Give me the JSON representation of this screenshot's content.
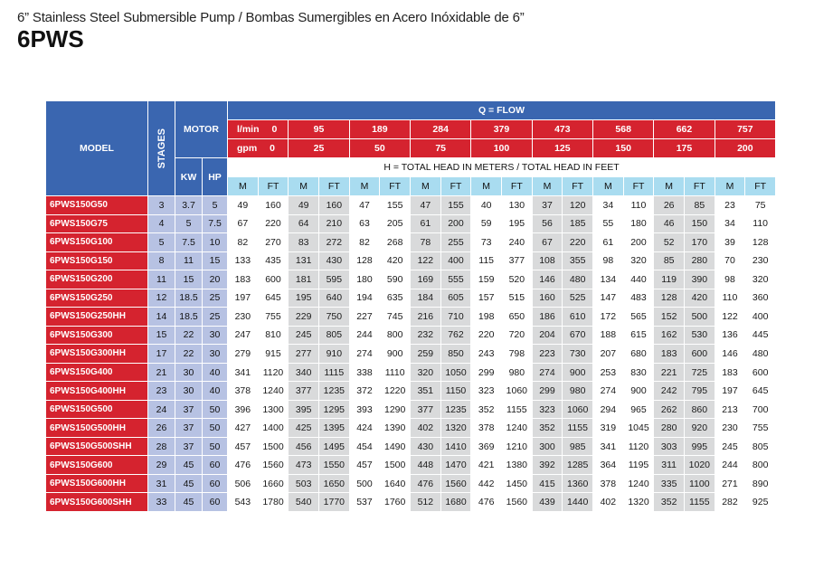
{
  "header": {
    "subtitle": "6” Stainless Steel Submersible Pump / Bombas Sumergibles en Acero Inóxidable de 6”",
    "title": "6PWS"
  },
  "table": {
    "model_label": "MODEL",
    "stages_label": "STAGES",
    "motor_label": "MOTOR",
    "kw_label": "KW",
    "hp_label": "HP",
    "flow_label": "Q = FLOW",
    "lmin_label": "l/min",
    "gpm_label": "gpm",
    "lmin_values": [
      "0",
      "95",
      "189",
      "284",
      "379",
      "473",
      "568",
      "662",
      "757"
    ],
    "gpm_values": [
      "0",
      "25",
      "50",
      "75",
      "100",
      "125",
      "150",
      "175",
      "200"
    ],
    "head_label": "H = TOTAL HEAD IN METERS / TOTAL HEAD IN FEET",
    "m_label": "M",
    "ft_label": "FT",
    "rows": [
      {
        "model": "6PWS150G50",
        "stages": "3",
        "kw": "3.7",
        "hp": "5",
        "vals": [
          "49",
          "160",
          "49",
          "160",
          "47",
          "155",
          "47",
          "155",
          "40",
          "130",
          "37",
          "120",
          "34",
          "110",
          "26",
          "85",
          "23",
          "75"
        ]
      },
      {
        "model": "6PWS150G75",
        "stages": "4",
        "kw": "5",
        "hp": "7.5",
        "vals": [
          "67",
          "220",
          "64",
          "210",
          "63",
          "205",
          "61",
          "200",
          "59",
          "195",
          "56",
          "185",
          "55",
          "180",
          "46",
          "150",
          "34",
          "110"
        ]
      },
      {
        "model": "6PWS150G100",
        "stages": "5",
        "kw": "7.5",
        "hp": "10",
        "vals": [
          "82",
          "270",
          "83",
          "272",
          "82",
          "268",
          "78",
          "255",
          "73",
          "240",
          "67",
          "220",
          "61",
          "200",
          "52",
          "170",
          "39",
          "128"
        ]
      },
      {
        "model": "6PWS150G150",
        "stages": "8",
        "kw": "11",
        "hp": "15",
        "vals": [
          "133",
          "435",
          "131",
          "430",
          "128",
          "420",
          "122",
          "400",
          "115",
          "377",
          "108",
          "355",
          "98",
          "320",
          "85",
          "280",
          "70",
          "230"
        ]
      },
      {
        "model": "6PWS150G200",
        "stages": "11",
        "kw": "15",
        "hp": "20",
        "vals": [
          "183",
          "600",
          "181",
          "595",
          "180",
          "590",
          "169",
          "555",
          "159",
          "520",
          "146",
          "480",
          "134",
          "440",
          "119",
          "390",
          "98",
          "320"
        ]
      },
      {
        "model": "6PWS150G250",
        "stages": "12",
        "kw": "18.5",
        "hp": "25",
        "vals": [
          "197",
          "645",
          "195",
          "640",
          "194",
          "635",
          "184",
          "605",
          "157",
          "515",
          "160",
          "525",
          "147",
          "483",
          "128",
          "420",
          "110",
          "360"
        ]
      },
      {
        "model": "6PWS150G250HH",
        "stages": "14",
        "kw": "18.5",
        "hp": "25",
        "vals": [
          "230",
          "755",
          "229",
          "750",
          "227",
          "745",
          "216",
          "710",
          "198",
          "650",
          "186",
          "610",
          "172",
          "565",
          "152",
          "500",
          "122",
          "400"
        ]
      },
      {
        "model": "6PWS150G300",
        "stages": "15",
        "kw": "22",
        "hp": "30",
        "vals": [
          "247",
          "810",
          "245",
          "805",
          "244",
          "800",
          "232",
          "762",
          "220",
          "720",
          "204",
          "670",
          "188",
          "615",
          "162",
          "530",
          "136",
          "445"
        ]
      },
      {
        "model": "6PWS150G300HH",
        "stages": "17",
        "kw": "22",
        "hp": "30",
        "vals": [
          "279",
          "915",
          "277",
          "910",
          "274",
          "900",
          "259",
          "850",
          "243",
          "798",
          "223",
          "730",
          "207",
          "680",
          "183",
          "600",
          "146",
          "480"
        ]
      },
      {
        "model": "6PWS150G400",
        "stages": "21",
        "kw": "30",
        "hp": "40",
        "vals": [
          "341",
          "1120",
          "340",
          "1115",
          "338",
          "1110",
          "320",
          "1050",
          "299",
          "980",
          "274",
          "900",
          "253",
          "830",
          "221",
          "725",
          "183",
          "600"
        ]
      },
      {
        "model": "6PWS150G400HH",
        "stages": "23",
        "kw": "30",
        "hp": "40",
        "vals": [
          "378",
          "1240",
          "377",
          "1235",
          "372",
          "1220",
          "351",
          "1150",
          "323",
          "1060",
          "299",
          "980",
          "274",
          "900",
          "242",
          "795",
          "197",
          "645"
        ]
      },
      {
        "model": "6PWS150G500",
        "stages": "24",
        "kw": "37",
        "hp": "50",
        "vals": [
          "396",
          "1300",
          "395",
          "1295",
          "393",
          "1290",
          "377",
          "1235",
          "352",
          "1155",
          "323",
          "1060",
          "294",
          "965",
          "262",
          "860",
          "213",
          "700"
        ]
      },
      {
        "model": "6PWS150G500HH",
        "stages": "26",
        "kw": "37",
        "hp": "50",
        "vals": [
          "427",
          "1400",
          "425",
          "1395",
          "424",
          "1390",
          "402",
          "1320",
          "378",
          "1240",
          "352",
          "1155",
          "319",
          "1045",
          "280",
          "920",
          "230",
          "755"
        ]
      },
      {
        "model": "6PWS150G500SHH",
        "stages": "28",
        "kw": "37",
        "hp": "50",
        "vals": [
          "457",
          "1500",
          "456",
          "1495",
          "454",
          "1490",
          "430",
          "1410",
          "369",
          "1210",
          "300",
          "985",
          "341",
          "1120",
          "303",
          "995",
          "245",
          "805"
        ]
      },
      {
        "model": "6PWS150G600",
        "stages": "29",
        "kw": "45",
        "hp": "60",
        "vals": [
          "476",
          "1560",
          "473",
          "1550",
          "457",
          "1500",
          "448",
          "1470",
          "421",
          "1380",
          "392",
          "1285",
          "364",
          "1195",
          "311",
          "1020",
          "244",
          "800"
        ]
      },
      {
        "model": "6PWS150G600HH",
        "stages": "31",
        "kw": "45",
        "hp": "60",
        "vals": [
          "506",
          "1660",
          "503",
          "1650",
          "500",
          "1640",
          "476",
          "1560",
          "442",
          "1450",
          "415",
          "1360",
          "378",
          "1240",
          "335",
          "1100",
          "271",
          "890"
        ]
      },
      {
        "model": "6PWS150G600SHH",
        "stages": "33",
        "kw": "45",
        "hp": "60",
        "vals": [
          "543",
          "1780",
          "540",
          "1770",
          "537",
          "1760",
          "512",
          "1680",
          "476",
          "1560",
          "439",
          "1440",
          "402",
          "1320",
          "352",
          "1155",
          "282",
          "925"
        ]
      }
    ]
  }
}
